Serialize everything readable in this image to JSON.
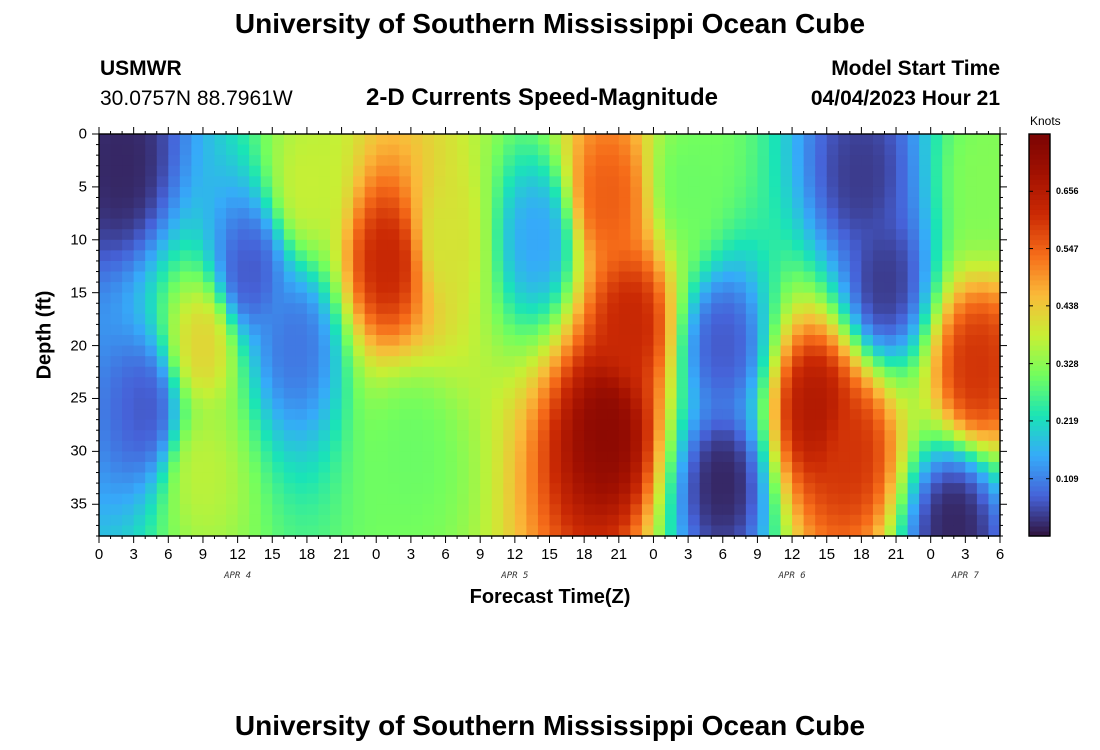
{
  "header": {
    "title": "University of Southern Mississippi Ocean Cube",
    "station_id": "USMWR",
    "station_coords": "30.0757N  88.7961W",
    "subtitle": "2-D Currents Speed-Magnitude",
    "model_label": "Model Start Time",
    "model_start": "04/04/2023 Hour 21"
  },
  "footer": {
    "title": "University of Southern Mississippi Ocean Cube"
  },
  "chart_data": {
    "type": "heatmap",
    "title": "2-D Currents Speed-Magnitude",
    "xlabel": "Forecast Time(Z)",
    "ylabel": "Depth (ft)",
    "x_ticks": [
      "0",
      "3",
      "6",
      "9",
      "12",
      "15",
      "18",
      "21",
      "0",
      "3",
      "6",
      "9",
      "12",
      "15",
      "18",
      "21",
      "0",
      "3",
      "6",
      "9",
      "12",
      "15",
      "18",
      "21",
      "0",
      "3",
      "6"
    ],
    "x_range_hours": [
      0,
      78
    ],
    "day_labels": [
      {
        "label": "APR 4",
        "hour": 12
      },
      {
        "label": "APR 5",
        "hour": 36
      },
      {
        "label": "APR 6",
        "hour": 60
      },
      {
        "label": "APR 7",
        "hour": 75
      }
    ],
    "y_ticks": [
      "0",
      "5",
      "10",
      "15",
      "20",
      "25",
      "30",
      "35"
    ],
    "y_range_ft": [
      0,
      38
    ],
    "colorbar": {
      "title": "Knots",
      "range": [
        0,
        0.765
      ],
      "ticks": [
        "0.109",
        "0.219",
        "0.328",
        "0.438",
        "0.547",
        "0.656"
      ],
      "tick_values": [
        0.109,
        0.219,
        0.328,
        0.438,
        0.547,
        0.656
      ]
    },
    "speed_features": [
      {
        "hour": 2,
        "depth": 3,
        "speed": 0.02
      },
      {
        "hour": 4,
        "depth": 26,
        "speed": 0.07
      },
      {
        "hour": 9,
        "depth": 20,
        "speed": 0.42
      },
      {
        "hour": 9,
        "depth": 32,
        "speed": 0.37
      },
      {
        "hour": 13,
        "depth": 13,
        "speed": 0.07
      },
      {
        "hour": 17,
        "depth": 20,
        "speed": 0.1
      },
      {
        "hour": 18,
        "depth": 5,
        "speed": 0.38
      },
      {
        "hour": 25,
        "depth": 12,
        "speed": 0.62
      },
      {
        "hour": 30,
        "depth": 10,
        "speed": 0.4
      },
      {
        "hour": 27,
        "depth": 30,
        "speed": 0.3
      },
      {
        "hour": 38,
        "depth": 10,
        "speed": 0.15
      },
      {
        "hour": 44,
        "depth": 6,
        "speed": 0.55
      },
      {
        "hour": 44,
        "depth": 28,
        "speed": 0.73
      },
      {
        "hour": 46,
        "depth": 18,
        "speed": 0.62
      },
      {
        "hour": 51,
        "depth": 5,
        "speed": 0.3
      },
      {
        "hour": 54,
        "depth": 20,
        "speed": 0.07
      },
      {
        "hour": 54,
        "depth": 33,
        "speed": 0.02
      },
      {
        "hour": 62,
        "depth": 26,
        "speed": 0.66
      },
      {
        "hour": 65,
        "depth": 30,
        "speed": 0.6
      },
      {
        "hour": 66,
        "depth": 4,
        "speed": 0.04
      },
      {
        "hour": 68,
        "depth": 14,
        "speed": 0.04
      },
      {
        "hour": 76,
        "depth": 22,
        "speed": 0.6
      },
      {
        "hour": 74,
        "depth": 37,
        "speed": 0.02
      },
      {
        "hour": 77,
        "depth": 5,
        "speed": 0.32
      }
    ]
  }
}
